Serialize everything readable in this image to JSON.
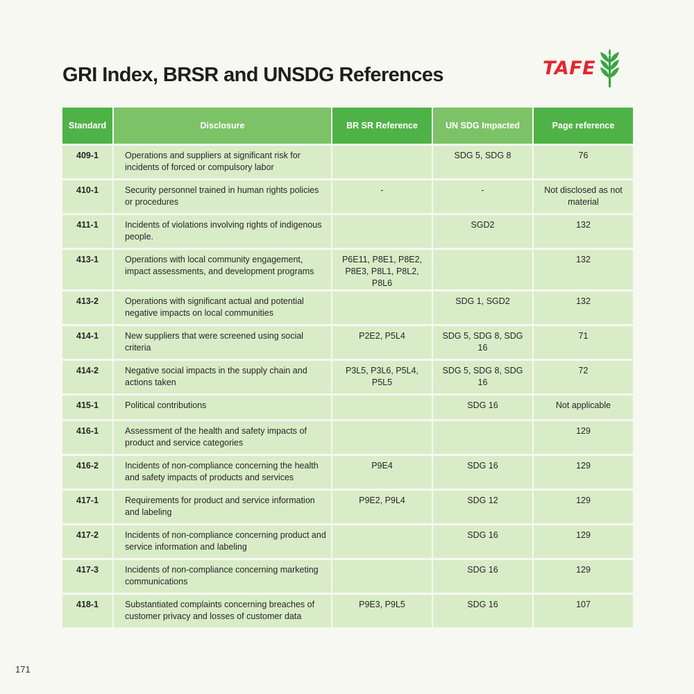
{
  "page": {
    "title": "GRI Index, BRSR and UNSDG References",
    "page_number": "171"
  },
  "logo": {
    "text": "TAFE",
    "icon": "wheat-icon",
    "brand_red": "#e3262d",
    "brand_green": "#3aa544"
  },
  "table": {
    "header_color": "#4fb247",
    "row_color": "#d9ecc8",
    "headers": {
      "standard": "Standard",
      "disclosure": "Disclosure",
      "brsr": "BR SR Reference",
      "unsdg": "UN SDG Impacted",
      "page": "Page reference"
    },
    "rows": [
      {
        "standard": "409-1",
        "disclosure": "Operations and suppliers at significant risk for incidents of forced or compulsory labor",
        "brsr": "",
        "unsdg": "SDG 5, SDG 8",
        "page": "76"
      },
      {
        "standard": "410-1",
        "disclosure": "Security personnel trained in human rights policies or procedures",
        "brsr": "-",
        "unsdg": "-",
        "page": "Not disclosed as not material"
      },
      {
        "standard": "411-1",
        "disclosure": "Incidents of violations involving rights of indigenous people.",
        "brsr": "",
        "unsdg": "SGD2",
        "page": "132"
      },
      {
        "standard": "413-1",
        "disclosure": "Operations with local community engagement, impact assessments, and development programs",
        "brsr": "P6E11, P8E1, P8E2, P8E3, P8L1, P8L2, P8L6",
        "unsdg": "",
        "page": "132"
      },
      {
        "standard": "413-2",
        "disclosure": "Operations with significant actual and potential negative impacts on local communities",
        "brsr": "",
        "unsdg": "SDG 1, SGD2",
        "page": "132"
      },
      {
        "standard": "414-1",
        "disclosure": "New suppliers that were screened using social criteria",
        "brsr": "P2E2, P5L4",
        "unsdg": "SDG 5, SDG 8, SDG 16",
        "page": "71"
      },
      {
        "standard": "414-2",
        "disclosure": "Negative social impacts in the supply chain and actions taken",
        "brsr": "P3L5, P3L6, P5L4, P5L5",
        "unsdg": "SDG 5, SDG 8, SDG 16",
        "page": "72"
      },
      {
        "standard": "415-1",
        "disclosure": "Political contributions",
        "brsr": "",
        "unsdg": "SDG 16",
        "page": "Not applicable"
      },
      {
        "standard": "416-1",
        "disclosure": "Assessment of the health and safety impacts of product and service categories",
        "brsr": "",
        "unsdg": "",
        "page": "129"
      },
      {
        "standard": "416-2",
        "disclosure": "Incidents of non-compliance concerning the health and safety impacts of products and services",
        "brsr": "P9E4",
        "unsdg": "SDG 16",
        "page": "129"
      },
      {
        "standard": "417-1",
        "disclosure": "Requirements for product and service information and labeling",
        "brsr": "P9E2, P9L4",
        "unsdg": "SDG 12",
        "page": "129"
      },
      {
        "standard": "417-2",
        "disclosure": "Incidents of non-compliance concerning product and service information and labeling",
        "brsr": "",
        "unsdg": "SDG 16",
        "page": "129"
      },
      {
        "standard": "417-3",
        "disclosure": "Incidents of non-compliance concerning marketing communications",
        "brsr": "",
        "unsdg": "SDG 16",
        "page": "129"
      },
      {
        "standard": "418-1",
        "disclosure": "Substantiated complaints concerning breaches of customer privacy and losses of customer data",
        "brsr": "P9E3, P9L5",
        "unsdg": "SDG 16",
        "page": "107"
      }
    ]
  }
}
